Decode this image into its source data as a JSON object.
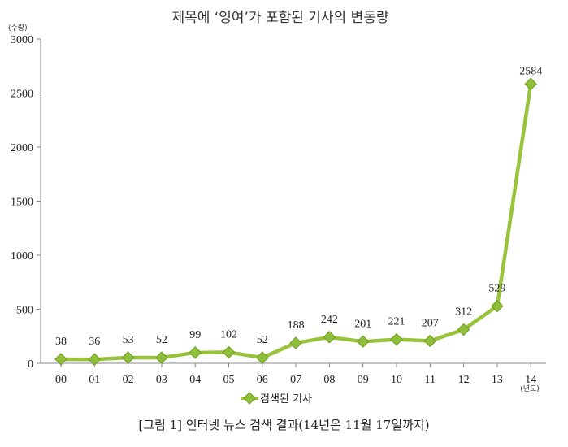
{
  "chart_data": {
    "type": "line",
    "title": "제목에 ‘잉여’가 포함된 기사의 변동량",
    "y_unit": "(수량)",
    "x_unit": "(년도)",
    "categories": [
      "00",
      "01",
      "02",
      "03",
      "04",
      "05",
      "06",
      "07",
      "08",
      "09",
      "10",
      "11",
      "12",
      "13",
      "14"
    ],
    "series": [
      {
        "name": "검색된 기사",
        "values": [
          38,
          36,
          53,
          52,
          99,
          102,
          52,
          188,
          242,
          201,
          221,
          207,
          312,
          529,
          2584
        ],
        "labels": [
          "38",
          "36",
          "53",
          "52",
          "99",
          "102",
          "52",
          "188",
          "242",
          "201",
          "221",
          "207",
          "312",
          "529",
          "2584"
        ]
      }
    ],
    "yticks": [
      "0",
      "500",
      "1000",
      "1500",
      "2000",
      "2500",
      "3000"
    ],
    "ylim": [
      0,
      3000
    ],
    "grid": false,
    "legend_position": "bottom",
    "line_color": "#99c33a",
    "marker_color": "#8fbf3a"
  },
  "caption": "[그림 1] 인터넷 뉴스 검색 결과(14년은 11월 17일까지)"
}
